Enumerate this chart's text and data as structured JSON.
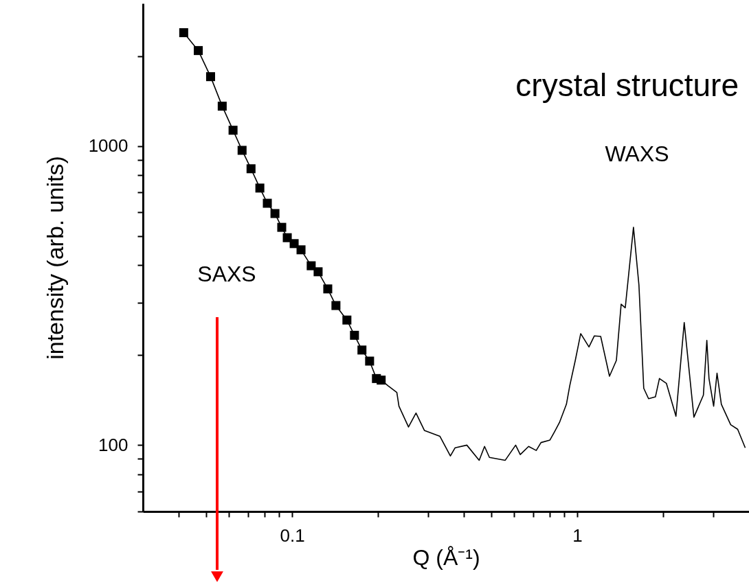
{
  "chart_data": {
    "type": "line",
    "xlabel": "Q (Å⁻¹)",
    "ylabel": "intensity (arb. units)",
    "log": "xy",
    "grid": false,
    "xlim": [
      0.03,
      4
    ],
    "ylim": [
      60,
      3000
    ],
    "xticks": [
      {
        "value": 0.04,
        "label": null
      },
      {
        "value": 0.05,
        "label": null
      },
      {
        "value": 0.06,
        "label": null
      },
      {
        "value": 0.07,
        "label": null
      },
      {
        "value": 0.08,
        "label": null
      },
      {
        "value": 0.09,
        "label": null
      },
      0.1,
      {
        "value": 0.2,
        "label": null
      },
      {
        "value": 0.3,
        "label": null
      },
      {
        "value": 0.4,
        "label": null
      },
      {
        "value": 0.5,
        "label": null
      },
      {
        "value": 0.6,
        "label": null
      },
      {
        "value": 0.7,
        "label": null
      },
      {
        "value": 0.8,
        "label": null
      },
      {
        "value": 0.9,
        "label": null
      },
      1,
      {
        "value": 2,
        "label": null
      },
      {
        "value": 3,
        "label": null
      }
    ],
    "yticks": [
      {
        "value": 60,
        "label": null
      },
      {
        "value": 70,
        "label": null
      },
      {
        "value": 80,
        "label": null
      },
      {
        "value": 90,
        "label": null
      },
      100,
      {
        "value": 200,
        "label": null
      },
      {
        "value": 300,
        "label": null
      },
      {
        "value": 400,
        "label": null
      },
      {
        "value": 500,
        "label": null
      },
      {
        "value": 600,
        "label": null
      },
      {
        "value": 700,
        "label": null
      },
      {
        "value": 800,
        "label": null
      },
      {
        "value": 900,
        "label": null
      },
      1000,
      {
        "value": 2000,
        "label": null
      }
    ],
    "annotations": [
      "crystal structure",
      "WAXS",
      "SAXS"
    ],
    "series": [
      {
        "marker": "square",
        "color": "#000000",
        "x": [
          0.0417,
          0.0469,
          0.0518,
          0.0569,
          0.0621,
          0.0668,
          0.0718,
          0.0771,
          0.0819,
          0.0871,
          0.092,
          0.0962,
          0.1017,
          0.1075,
          0.1167,
          0.1234,
          0.1334,
          0.1425,
          0.1557,
          0.1655,
          0.1758,
          0.187,
          0.1976,
          0.2053
        ],
        "values": [
          2395,
          2087,
          1707,
          1360,
          1130,
          968,
          840,
          724,
          644,
          595,
          535,
          494,
          472,
          450,
          398,
          380,
          333,
          293,
          262,
          233,
          208,
          191,
          167,
          165
        ]
      },
      {
        "marker": "none",
        "color": "#000000",
        "x": [
          0.2053,
          0.217,
          0.233,
          0.237,
          0.256,
          0.272,
          0.291,
          0.33,
          0.359,
          0.373,
          0.41,
          0.453,
          0.473,
          0.492,
          0.559,
          0.608,
          0.631,
          0.675,
          0.718,
          0.746,
          0.802,
          0.833,
          0.866,
          0.916,
          0.941,
          0.984,
          1.028,
          1.099,
          1.148,
          1.208,
          1.297,
          1.371,
          1.425,
          1.473,
          1.574,
          1.645,
          1.71,
          1.778,
          1.879,
          1.941,
          2.053,
          2.218,
          2.371,
          2.564,
          2.768,
          2.846,
          2.896,
          3.007,
          3.09,
          3.2,
          3.45,
          3.65,
          3.88
        ],
        "values": [
          165,
          158,
          150,
          135,
          115,
          128,
          112,
          107,
          92,
          98,
          100,
          89,
          99,
          91,
          89,
          100,
          93,
          99,
          96,
          102,
          104,
          111,
          119,
          137,
          158,
          192,
          236,
          213,
          232,
          231,
          170,
          192,
          296,
          288,
          535,
          343,
          155,
          143,
          145,
          167,
          161,
          125,
          257,
          124,
          147,
          224,
          167,
          135,
          174,
          137,
          117,
          113,
          98
        ]
      }
    ]
  }
}
